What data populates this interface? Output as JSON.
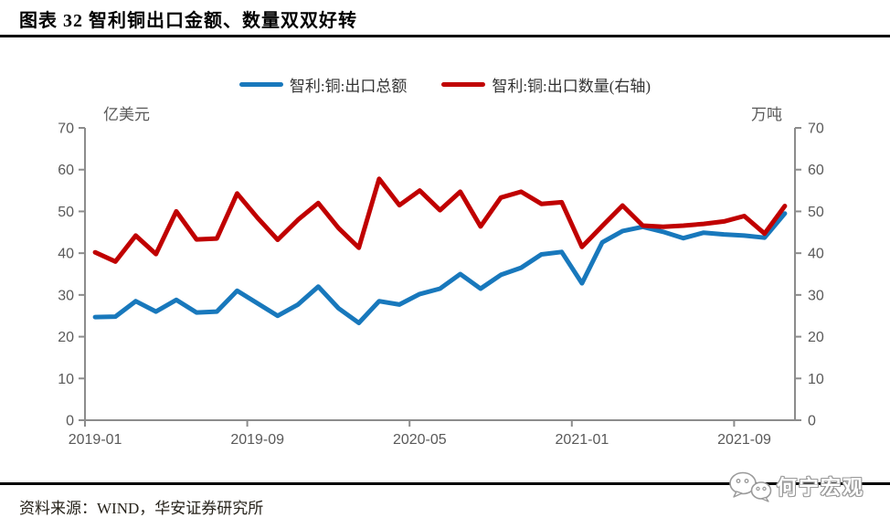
{
  "header": {
    "title": "图表 32 智利铜出口金额、数量双双好转"
  },
  "legend": [
    {
      "label": "智利:铜:出口总额",
      "color": "#1878BC"
    },
    {
      "label": "智利:铜:出口数量(右轴)",
      "color": "#C00000"
    }
  ],
  "footer": {
    "source": "资料来源：WIND，华安证券研究所",
    "watermark": "何宁宏观",
    "watermark_icon": "wechat-icon"
  },
  "chart_data": {
    "type": "line",
    "title": "图表 32 智利铜出口金额、数量双双好转",
    "grid": false,
    "legend_position": "top",
    "x": [
      "2019-01",
      "2019-02",
      "2019-03",
      "2019-04",
      "2019-05",
      "2019-06",
      "2019-07",
      "2019-08",
      "2019-09",
      "2019-10",
      "2019-11",
      "2019-12",
      "2020-01",
      "2020-02",
      "2020-03",
      "2020-04",
      "2020-05",
      "2020-06",
      "2020-07",
      "2020-08",
      "2020-09",
      "2020-10",
      "2020-11",
      "2020-12",
      "2021-01",
      "2021-02",
      "2021-03",
      "2021-04",
      "2021-05",
      "2021-06",
      "2021-07",
      "2021-08",
      "2021-09",
      "2021-10",
      "2021-11"
    ],
    "x_tick_labels": [
      "2019-01",
      "2019-09",
      "2020-05",
      "2021-01",
      "2021-09"
    ],
    "x_tick_interval": 8,
    "left_axis": {
      "unit": "亿美元",
      "min": 0,
      "max": 70,
      "tick_step": 10
    },
    "right_axis": {
      "unit": "万吨",
      "min": 0,
      "max": 70,
      "tick_step": 10
    },
    "axis_color": "#8c8c8c",
    "tick_label_color": "#595959",
    "series": [
      {
        "name": "智利:铜:出口总额",
        "axis": "left",
        "color": "#1878BC",
        "values": [
          24.7,
          24.8,
          28.5,
          26.0,
          28.8,
          25.8,
          26.0,
          31.0,
          28.0,
          25.0,
          27.7,
          32.0,
          26.8,
          23.3,
          28.5,
          27.7,
          30.2,
          31.5,
          35.0,
          31.5,
          34.8,
          36.5,
          39.7,
          40.3,
          32.8,
          42.6,
          45.3,
          46.3,
          45.1,
          43.6,
          44.9,
          44.5,
          44.2,
          43.7,
          49.5
        ]
      },
      {
        "name": "智利:铜:出口数量(右轴)",
        "axis": "right",
        "color": "#C00000",
        "values": [
          40.2,
          38.0,
          44.2,
          39.8,
          50.0,
          43.3,
          43.5,
          54.3,
          48.5,
          43.2,
          48.0,
          52.0,
          46.0,
          41.3,
          57.8,
          51.5,
          55.0,
          50.3,
          54.7,
          46.4,
          53.3,
          54.7,
          51.8,
          52.2,
          41.5,
          46.5,
          51.4,
          46.6,
          46.3,
          46.6,
          47.0,
          47.6,
          48.9,
          44.7,
          51.3
        ]
      }
    ]
  }
}
